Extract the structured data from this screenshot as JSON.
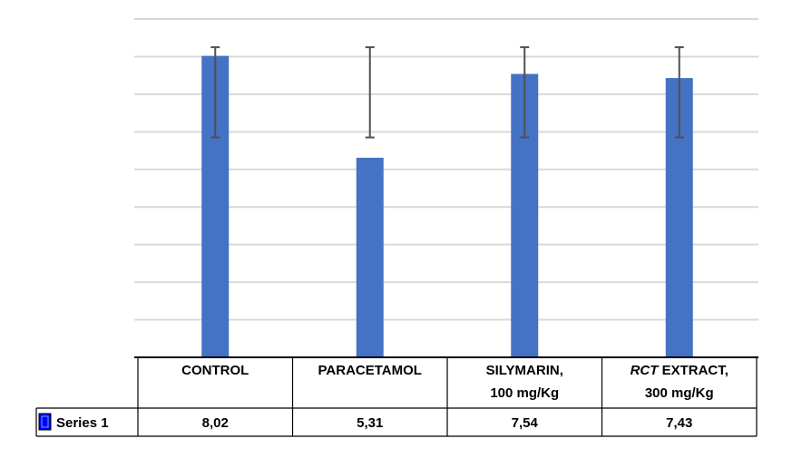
{
  "chart_data": {
    "type": "bar",
    "categories": [
      [
        "CONTROL"
      ],
      [
        "PARACETAMOL"
      ],
      [
        "SILYMARIN,",
        "100 mg/Kg"
      ],
      [
        "RCT EXTRACT,",
        "300 mg/Kg"
      ]
    ],
    "category_italic_prefix": [
      "",
      "",
      "",
      "RCT"
    ],
    "series": [
      {
        "name": "Series 1",
        "values": [
          8.02,
          5.31,
          7.54,
          7.43
        ],
        "value_labels": [
          "8,02",
          "5,31",
          "7,54",
          "7,43"
        ],
        "error_low": [
          5.85,
          5.85,
          5.85,
          5.85
        ],
        "error_high": [
          8.25,
          8.25,
          8.25,
          8.25
        ]
      }
    ],
    "ylim": [
      0,
      9
    ],
    "grid": true,
    "data_table": true,
    "legend": "in data table",
    "colors": {
      "bar": "#4472C4",
      "error_bar": "#505050",
      "grid": "#D9D9D9",
      "legend_key": "#0000FF"
    }
  }
}
